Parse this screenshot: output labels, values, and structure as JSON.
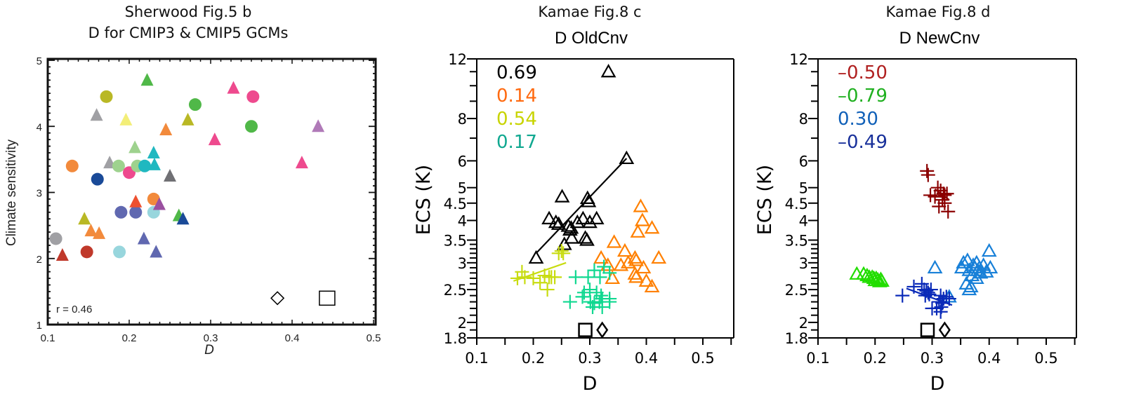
{
  "chart_data": [
    {
      "type": "scatter",
      "title": "Sherwood Fig.5 b",
      "subtitle": "D for CMIP3 & CMIP5 GCMs",
      "xlabel": "D",
      "ylabel": "Climate sensitivity",
      "xlim": [
        0.1,
        0.5
      ],
      "ylim": [
        1,
        5
      ],
      "yscale": "linear",
      "xticks": [
        "0.1",
        "0.2",
        "0.3",
        "0.4",
        "0.5"
      ],
      "yticks": [
        "1",
        "2",
        "3",
        "4",
        "5"
      ],
      "annotation": "r = 0.46",
      "points": [
        {
          "x": 0.118,
          "y": 2.05,
          "shape": "triangle",
          "color": "#c0392b"
        },
        {
          "x": 0.11,
          "y": 2.3,
          "shape": "circle",
          "color": "#a0a0a4"
        },
        {
          "x": 0.148,
          "y": 2.1,
          "shape": "circle",
          "color": "#c0392b"
        },
        {
          "x": 0.145,
          "y": 2.6,
          "shape": "triangle",
          "color": "#b9b825"
        },
        {
          "x": 0.153,
          "y": 2.42,
          "shape": "triangle",
          "color": "#f28a3c"
        },
        {
          "x": 0.163,
          "y": 2.38,
          "shape": "triangle",
          "color": "#f28a3c"
        },
        {
          "x": 0.188,
          "y": 2.1,
          "shape": "circle",
          "color": "#98d6dd"
        },
        {
          "x": 0.19,
          "y": 2.7,
          "shape": "circle",
          "color": "#6068b0"
        },
        {
          "x": 0.208,
          "y": 2.7,
          "shape": "circle",
          "color": "#6068b0"
        },
        {
          "x": 0.208,
          "y": 2.86,
          "shape": "triangle",
          "color": "#ee5030"
        },
        {
          "x": 0.218,
          "y": 2.3,
          "shape": "triangle",
          "color": "#6068b0"
        },
        {
          "x": 0.233,
          "y": 2.1,
          "shape": "triangle",
          "color": "#6068b0"
        },
        {
          "x": 0.23,
          "y": 2.7,
          "shape": "circle",
          "color": "#98d6dd"
        },
        {
          "x": 0.23,
          "y": 2.9,
          "shape": "circle",
          "color": "#f28a3c"
        },
        {
          "x": 0.237,
          "y": 2.82,
          "shape": "triangle",
          "color": "#9a50a0"
        },
        {
          "x": 0.261,
          "y": 2.65,
          "shape": "triangle",
          "color": "#50b848"
        },
        {
          "x": 0.266,
          "y": 2.6,
          "shape": "triangle",
          "color": "#1a4a98"
        },
        {
          "x": 0.13,
          "y": 3.4,
          "shape": "circle",
          "color": "#f28a3c"
        },
        {
          "x": 0.161,
          "y": 3.2,
          "shape": "circle",
          "color": "#1a4a98"
        },
        {
          "x": 0.16,
          "y": 4.17,
          "shape": "triangle",
          "color": "#a0a0a4"
        },
        {
          "x": 0.172,
          "y": 4.45,
          "shape": "circle",
          "color": "#b9b825"
        },
        {
          "x": 0.176,
          "y": 3.45,
          "shape": "triangle",
          "color": "#a0a0a4"
        },
        {
          "x": 0.187,
          "y": 3.4,
          "shape": "circle",
          "color": "#9ed28e"
        },
        {
          "x": 0.196,
          "y": 4.1,
          "shape": "triangle",
          "color": "#f3ee78"
        },
        {
          "x": 0.2,
          "y": 3.3,
          "shape": "circle",
          "color": "#ee4a8e"
        },
        {
          "x": 0.207,
          "y": 3.68,
          "shape": "triangle",
          "color": "#9ed28e"
        },
        {
          "x": 0.21,
          "y": 3.4,
          "shape": "circle",
          "color": "#9ed28e"
        },
        {
          "x": 0.222,
          "y": 4.7,
          "shape": "triangle",
          "color": "#50b848"
        },
        {
          "x": 0.219,
          "y": 3.4,
          "shape": "circle",
          "color": "#20b8c0"
        },
        {
          "x": 0.23,
          "y": 3.6,
          "shape": "triangle",
          "color": "#20b8c0"
        },
        {
          "x": 0.231,
          "y": 3.42,
          "shape": "triangle",
          "color": "#20b8c0"
        },
        {
          "x": 0.245,
          "y": 3.95,
          "shape": "triangle",
          "color": "#f28a3c"
        },
        {
          "x": 0.25,
          "y": 3.25,
          "shape": "triangle",
          "color": "#707074"
        },
        {
          "x": 0.272,
          "y": 4.1,
          "shape": "triangle",
          "color": "#b9b825"
        },
        {
          "x": 0.281,
          "y": 4.33,
          "shape": "circle",
          "color": "#50b848"
        },
        {
          "x": 0.305,
          "y": 3.8,
          "shape": "triangle",
          "color": "#ee4a8e"
        },
        {
          "x": 0.328,
          "y": 4.58,
          "shape": "triangle",
          "color": "#ee4a8e"
        },
        {
          "x": 0.35,
          "y": 4.0,
          "shape": "circle",
          "color": "#50b848"
        },
        {
          "x": 0.352,
          "y": 4.45,
          "shape": "circle",
          "color": "#ee4a8e"
        },
        {
          "x": 0.412,
          "y": 3.45,
          "shape": "triangle",
          "color": "#ee4a8e"
        },
        {
          "x": 0.432,
          "y": 4.0,
          "shape": "triangle",
          "color": "#b07ab8"
        },
        {
          "x": 0.382,
          "y": 1.4,
          "shape": "diamond-open",
          "color": "#000000"
        },
        {
          "x": 0.443,
          "y": 1.4,
          "shape": "square-open",
          "color": "#000000"
        }
      ]
    },
    {
      "type": "scatter",
      "title": "Kamae Fig.8 c",
      "subtitle": "D  OldCnv",
      "xlabel": "D",
      "ylabel": "ECS (K)",
      "xlim": [
        0.1,
        0.55
      ],
      "ylim": [
        1.8,
        12
      ],
      "yscale": "log",
      "xticks": [
        "0.1",
        "0.2",
        "0.3",
        "0.4",
        "0.5"
      ],
      "yticks": [
        "1.8",
        "2",
        "2.5",
        "3",
        "3.5",
        "4",
        "4.5",
        "5",
        "6",
        "8",
        "12"
      ],
      "correlations": [
        {
          "text": "0.69",
          "color": "#000000"
        },
        {
          "text": "0.14",
          "color": "#ff6a10"
        },
        {
          "text": "0.54",
          "color": "#c8d400"
        },
        {
          "text": "0.17",
          "color": "#10a890"
        }
      ],
      "series": [
        {
          "name": "black",
          "marker": "triangle-open",
          "color": "#000000",
          "fit": [
            [
              0.205,
              3.2
            ],
            [
              0.365,
              6.1
            ]
          ],
          "points": [
            [
              0.333,
              11.0
            ],
            [
              0.365,
              6.1
            ],
            [
              0.251,
              4.7
            ],
            [
              0.296,
              4.65
            ],
            [
              0.298,
              4.55
            ],
            [
              0.228,
              4.05
            ],
            [
              0.24,
              3.95
            ],
            [
              0.245,
              3.9
            ],
            [
              0.262,
              3.85
            ],
            [
              0.267,
              3.8
            ],
            [
              0.265,
              3.75
            ],
            [
              0.288,
              4.05
            ],
            [
              0.278,
              3.95
            ],
            [
              0.312,
              4.05
            ],
            [
              0.268,
              3.55
            ],
            [
              0.292,
              3.55
            ],
            [
              0.295,
              3.5
            ],
            [
              0.255,
              3.4
            ],
            [
              0.205,
              3.1
            ],
            [
              0.3,
              3.95
            ]
          ]
        },
        {
          "name": "orange",
          "marker": "triangle-open",
          "color": "#ff8000",
          "points": [
            [
              0.39,
              4.4
            ],
            [
              0.393,
              4.0
            ],
            [
              0.385,
              3.7
            ],
            [
              0.41,
              3.8
            ],
            [
              0.343,
              3.45
            ],
            [
              0.362,
              3.25
            ],
            [
              0.32,
              3.1
            ],
            [
              0.332,
              2.95
            ],
            [
              0.38,
              3.1
            ],
            [
              0.382,
              3.05
            ],
            [
              0.368,
              3.0
            ],
            [
              0.355,
              2.95
            ],
            [
              0.395,
              2.9
            ],
            [
              0.422,
              3.1
            ],
            [
              0.4,
              2.65
            ],
            [
              0.382,
              2.72
            ],
            [
              0.38,
              2.78
            ],
            [
              0.34,
              2.7
            ],
            [
              0.41,
              2.55
            ]
          ]
        },
        {
          "name": "yellowgreen",
          "marker": "plus",
          "color": "#c8dc10",
          "fit": [
            [
              0.165,
              2.65
            ],
            [
              0.258,
              3.0
            ]
          ],
          "points": [
            [
              0.25,
              3.25
            ],
            [
              0.253,
              3.2
            ],
            [
              0.245,
              3.2
            ],
            [
              0.18,
              2.82
            ],
            [
              0.172,
              2.7
            ],
            [
              0.185,
              2.72
            ],
            [
              0.2,
              2.7
            ],
            [
              0.22,
              2.75
            ],
            [
              0.228,
              2.72
            ],
            [
              0.232,
              2.72
            ],
            [
              0.238,
              2.72
            ],
            [
              0.225,
              2.5
            ],
            [
              0.212,
              2.62
            ]
          ]
        },
        {
          "name": "teal",
          "marker": "plus",
          "color": "#10d890",
          "points": [
            [
              0.325,
              2.92
            ],
            [
              0.308,
              2.85
            ],
            [
              0.335,
              2.8
            ],
            [
              0.275,
              2.72
            ],
            [
              0.297,
              2.72
            ],
            [
              0.318,
              2.72
            ],
            [
              0.3,
              2.5
            ],
            [
              0.312,
              2.45
            ],
            [
              0.29,
              2.45
            ],
            [
              0.287,
              2.38
            ],
            [
              0.32,
              2.4
            ],
            [
              0.322,
              2.35
            ],
            [
              0.335,
              2.35
            ],
            [
              0.265,
              2.3
            ],
            [
              0.301,
              2.3
            ],
            [
              0.308,
              2.28
            ],
            [
              0.317,
              2.3
            ],
            [
              0.335,
              2.3
            ],
            [
              0.305,
              2.22
            ],
            [
              0.322,
              2.22
            ]
          ]
        },
        {
          "name": "obs",
          "marker": "square-open",
          "color": "#000000",
          "points": [
            [
              0.292,
              1.9
            ]
          ]
        },
        {
          "name": "obs2",
          "marker": "diamond-open",
          "color": "#000000",
          "points": [
            [
              0.322,
              1.9
            ]
          ]
        }
      ]
    },
    {
      "type": "scatter",
      "title": "Kamae Fig.8 d",
      "subtitle": "D  NewCnv",
      "xlabel": "D",
      "ylabel": "ECS (K)",
      "xlim": [
        0.1,
        0.55
      ],
      "ylim": [
        1.8,
        12
      ],
      "yscale": "log",
      "xticks": [
        "0.1",
        "0.2",
        "0.3",
        "0.4",
        "0.5"
      ],
      "yticks": [
        "1.8",
        "2",
        "2.5",
        "3",
        "3.5",
        "4",
        "4.5",
        "5",
        "6",
        "8",
        "12"
      ],
      "correlations": [
        {
          "text": "–0.50",
          "color": "#b02020"
        },
        {
          "text": "–0.79",
          "color": "#20b020"
        },
        {
          "text": "0.30",
          "color": "#1060b8"
        },
        {
          "text": "–0.49",
          "color": "#18309a"
        }
      ],
      "series": [
        {
          "name": "darkred",
          "marker": "plus",
          "color": "#8b0000",
          "fit": [
            [
              0.305,
              4.95
            ],
            [
              0.33,
              4.6
            ]
          ],
          "points": [
            [
              0.291,
              5.6
            ],
            [
              0.293,
              5.45
            ],
            [
              0.31,
              5.0
            ],
            [
              0.315,
              4.9
            ],
            [
              0.32,
              4.8
            ],
            [
              0.322,
              4.75
            ],
            [
              0.326,
              4.8
            ],
            [
              0.297,
              4.75
            ],
            [
              0.305,
              4.7
            ],
            [
              0.318,
              4.6
            ],
            [
              0.312,
              4.4
            ],
            [
              0.322,
              4.5
            ],
            [
              0.328,
              4.25
            ]
          ]
        },
        {
          "name": "green",
          "marker": "triangle-open",
          "color": "#22dd00",
          "points": [
            [
              0.168,
              2.78
            ],
            [
              0.18,
              2.78
            ],
            [
              0.186,
              2.75
            ],
            [
              0.19,
              2.72
            ],
            [
              0.195,
              2.72
            ],
            [
              0.198,
              2.7
            ],
            [
              0.202,
              2.7
            ],
            [
              0.205,
              2.67
            ],
            [
              0.21,
              2.68
            ],
            [
              0.212,
              2.65
            ],
            [
              0.2,
              2.66
            ],
            [
              0.208,
              2.64
            ]
          ]
        },
        {
          "name": "lightblue",
          "marker": "triangle-open",
          "color": "#1880d8",
          "points": [
            [
              0.4,
              3.25
            ],
            [
              0.305,
              2.9
            ],
            [
              0.355,
              3.0
            ],
            [
              0.362,
              3.05
            ],
            [
              0.372,
              2.95
            ],
            [
              0.375,
              2.9
            ],
            [
              0.38,
              2.85
            ],
            [
              0.383,
              2.9
            ],
            [
              0.39,
              2.95
            ],
            [
              0.378,
              3.0
            ],
            [
              0.402,
              2.9
            ],
            [
              0.352,
              2.9
            ],
            [
              0.365,
              2.85
            ],
            [
              0.37,
              2.75
            ],
            [
              0.385,
              2.8
            ],
            [
              0.378,
              2.7
            ],
            [
              0.395,
              2.82
            ],
            [
              0.36,
              2.6
            ],
            [
              0.368,
              2.55
            ],
            [
              0.365,
              2.5
            ],
            [
              0.33,
              2.38
            ]
          ]
        },
        {
          "name": "navy",
          "marker": "plus",
          "color": "#0a2ab8",
          "fit": [
            [
              0.255,
              2.52
            ],
            [
              0.335,
              2.25
            ]
          ],
          "points": [
            [
              0.248,
              2.4
            ],
            [
              0.268,
              2.55
            ],
            [
              0.282,
              2.6
            ],
            [
              0.286,
              2.5
            ],
            [
              0.29,
              2.48
            ],
            [
              0.293,
              2.45
            ],
            [
              0.295,
              2.42
            ],
            [
              0.288,
              2.4
            ],
            [
              0.298,
              2.5
            ],
            [
              0.315,
              2.4
            ],
            [
              0.32,
              2.35
            ],
            [
              0.325,
              2.38
            ],
            [
              0.33,
              2.35
            ],
            [
              0.312,
              2.3
            ],
            [
              0.318,
              2.28
            ],
            [
              0.3,
              2.2
            ],
            [
              0.308,
              2.2
            ],
            [
              0.316,
              2.22
            ],
            [
              0.315,
              2.15
            ]
          ]
        },
        {
          "name": "obs",
          "marker": "square-open",
          "color": "#000000",
          "points": [
            [
              0.292,
              1.9
            ]
          ]
        },
        {
          "name": "obs2",
          "marker": "diamond-open",
          "color": "#000000",
          "points": [
            [
              0.322,
              1.9
            ]
          ]
        }
      ]
    }
  ]
}
